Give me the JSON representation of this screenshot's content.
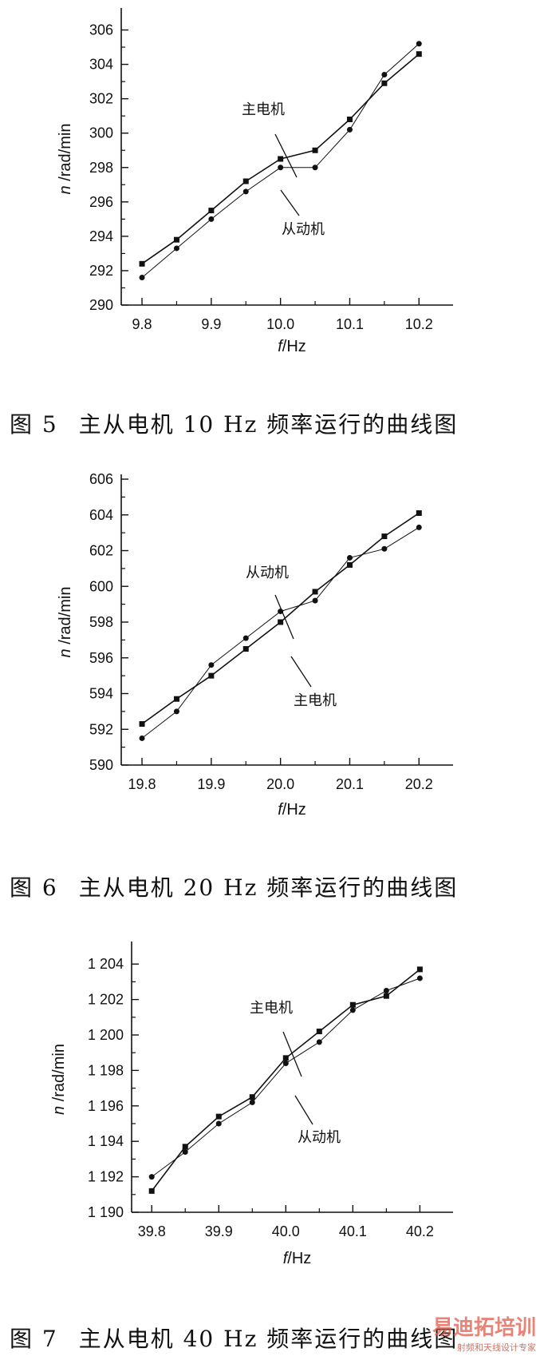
{
  "chart_data": [
    {
      "type": "line",
      "caption_number": "图 5",
      "caption_text": "主从电机 10 Hz 频率运行的曲线图",
      "xlabel_italic": "f",
      "xlabel_unit": "/Hz",
      "ylabel_italic": "n",
      "ylabel_unit": " /rad/min",
      "x": [
        9.8,
        9.85,
        9.9,
        9.95,
        10.0,
        10.05,
        10.1,
        10.15,
        10.2
      ],
      "xticks": [
        9.8,
        9.9,
        10.0,
        10.1,
        10.2
      ],
      "xtick_labels": [
        "9.8",
        "9.9",
        "10.0",
        "10.1",
        "10.2"
      ],
      "yticks": [
        290,
        292,
        294,
        296,
        298,
        300,
        302,
        304,
        306
      ],
      "ytick_labels": [
        "290",
        "292",
        "294",
        "296",
        "298",
        "300",
        "302",
        "304",
        "306"
      ],
      "xlim": [
        9.77,
        10.24
      ],
      "ylim": [
        290,
        307
      ],
      "series": [
        {
          "name": "主电机",
          "marker": "square",
          "values": [
            292.4,
            293.8,
            295.5,
            297.2,
            298.5,
            299.0,
            300.8,
            302.9,
            304.6
          ]
        },
        {
          "name": "从动机",
          "marker": "circle",
          "values": [
            291.6,
            293.3,
            295.0,
            296.6,
            298.0,
            298.0,
            300.2,
            303.4,
            305.2
          ]
        }
      ],
      "annotations": [
        {
          "text": "主电机",
          "series": 0
        },
        {
          "text": "从动机",
          "series": 1
        }
      ]
    },
    {
      "type": "line",
      "caption_number": "图 6",
      "caption_text": "主从电机 20 Hz 频率运行的曲线图",
      "xlabel_italic": "f",
      "xlabel_unit": "/Hz",
      "ylabel_italic": "n",
      "ylabel_unit": " /rad/min",
      "x": [
        19.8,
        19.85,
        19.9,
        19.95,
        20.0,
        20.05,
        20.1,
        20.15,
        20.2
      ],
      "xticks": [
        19.8,
        19.9,
        20.0,
        20.1,
        20.2
      ],
      "xtick_labels": [
        "19.8",
        "19.9",
        "20.0",
        "20.1",
        "20.2"
      ],
      "yticks": [
        590,
        592,
        594,
        596,
        598,
        600,
        602,
        604,
        606
      ],
      "ytick_labels": [
        "590",
        "592",
        "594",
        "596",
        "598",
        "600",
        "602",
        "604",
        "606"
      ],
      "xlim": [
        19.77,
        20.24
      ],
      "ylim": [
        590,
        606
      ],
      "series": [
        {
          "name": "主电机",
          "marker": "square",
          "values": [
            592.3,
            593.7,
            595.0,
            596.5,
            598.0,
            599.7,
            601.2,
            602.8,
            604.1
          ]
        },
        {
          "name": "从动机",
          "marker": "circle",
          "values": [
            591.5,
            593.0,
            595.6,
            597.1,
            598.6,
            599.2,
            601.6,
            602.1,
            603.3
          ]
        }
      ],
      "annotations": [
        {
          "text": "从动机",
          "series": 1
        },
        {
          "text": "主电机",
          "series": 0
        }
      ]
    },
    {
      "type": "line",
      "caption_number": "图 7",
      "caption_text": "主从电机 40 Hz 频率运行的曲线图",
      "xlabel_italic": "f",
      "xlabel_unit": "/Hz",
      "ylabel_italic": "n",
      "ylabel_unit": " /rad/min",
      "x": [
        39.8,
        39.85,
        39.9,
        39.95,
        40.0,
        40.05,
        40.1,
        40.15,
        40.2
      ],
      "xticks": [
        39.8,
        39.9,
        40.0,
        40.1,
        40.2
      ],
      "xtick_labels": [
        "39.8",
        "39.9",
        "40.0",
        "40.1",
        "40.2"
      ],
      "yticks": [
        1190,
        1192,
        1194,
        1196,
        1198,
        1200,
        1202,
        1204
      ],
      "ytick_labels": [
        "1 190",
        "1 192",
        "1 194",
        "1 196",
        "1 198",
        "1 200",
        "1 202",
        "1 204"
      ],
      "xlim": [
        39.77,
        40.24
      ],
      "ylim": [
        1190,
        1205
      ],
      "series": [
        {
          "name": "主电机",
          "marker": "square",
          "values": [
            1191.2,
            1193.7,
            1195.4,
            1196.5,
            1198.7,
            1200.2,
            1201.7,
            1202.2,
            1203.7
          ]
        },
        {
          "name": "从动机",
          "marker": "circle",
          "values": [
            1192.0,
            1193.4,
            1195.0,
            1196.2,
            1198.4,
            1199.6,
            1201.4,
            1202.5,
            1203.2
          ]
        }
      ],
      "annotations": [
        {
          "text": "主电机",
          "series": 0
        },
        {
          "text": "从动机",
          "series": 1
        }
      ]
    }
  ],
  "watermark": {
    "top": "易迪拓培训",
    "bottom": "射频和天线设计专家"
  },
  "colors": {
    "ink": "#111111",
    "background": "#ffffff",
    "watermark": "#e05a4a"
  }
}
